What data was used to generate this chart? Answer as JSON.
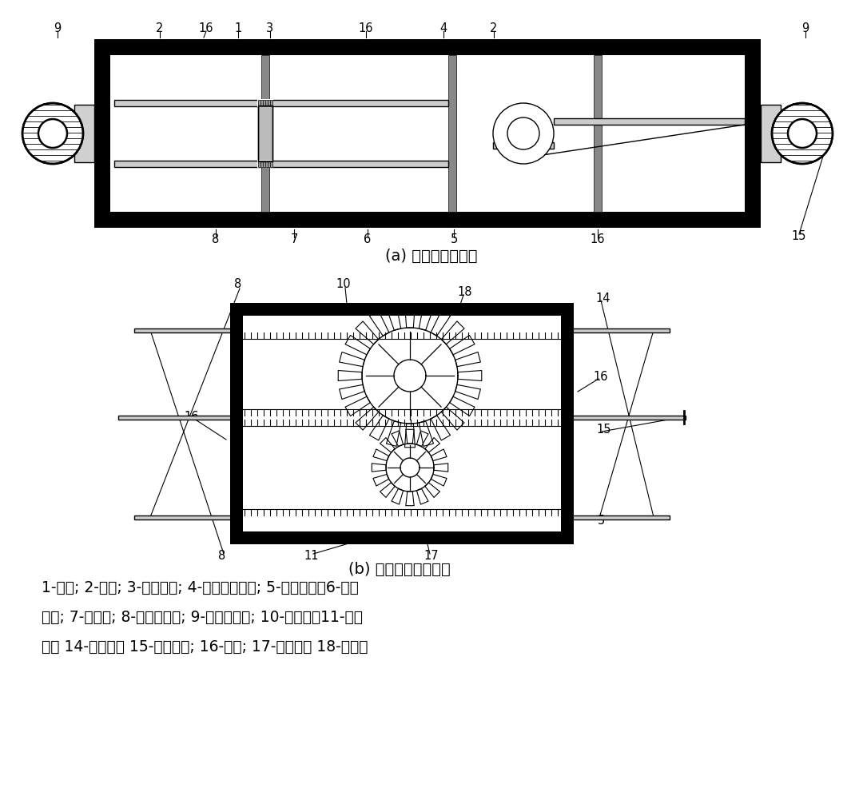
{
  "fig_width": 10.8,
  "fig_height": 10.11,
  "bg_color": "#ffffff",
  "line_color": "#000000",
  "label_a": "(a) 阻尼器侧剑面图",
  "label_b": "(b) 齿轮机构正剑面图",
  "caption_lines": [
    "1-主缸; 2-副缸; 3-带孔活塞; 4-齿轮放大机构; 5-中间齿条；6-阻尼",
    "材料; 7-阻尼孔; 8-上、下导杆; 9-末端马蹄铁; 10-上齿条；11-下齿",
    "条； 14-齿轮组； 15-中间导杆; 16-隔板; 17-小齿轮； 18-大齿轮"
  ]
}
